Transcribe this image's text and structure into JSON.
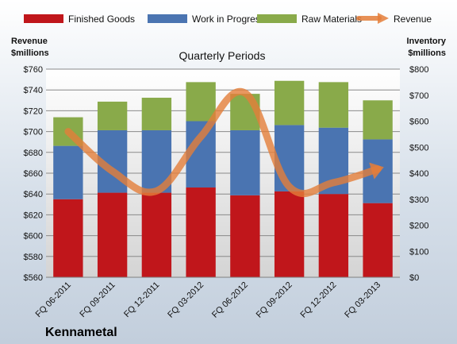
{
  "chart_data": {
    "type": "bar",
    "subtitle": "Quarterly Periods",
    "brand": "Kennametal",
    "categories": [
      "FQ 06-2011",
      "FQ 09-2011",
      "FQ 12-2011",
      "FQ 03-2012",
      "FQ 06-2012",
      "FQ 09-2012",
      "FQ 12-2012",
      "FQ 03-2013"
    ],
    "y_left": {
      "label_line1": "Revenue",
      "label_line2": "$millions",
      "range": [
        560,
        760
      ],
      "ticks": [
        "$560",
        "$580",
        "$600",
        "$620",
        "$640",
        "$660",
        "$680",
        "$700",
        "$720",
        "$740",
        "$760"
      ]
    },
    "y_right": {
      "label_line1": "Inventory",
      "label_line2": "$millions",
      "range": [
        0,
        800
      ],
      "ticks": [
        "$0",
        "$100",
        "$200",
        "$300",
        "$400",
        "$500",
        "$600",
        "$700",
        "$800"
      ]
    },
    "stacked_series": [
      {
        "name": "Finished Goods",
        "color": "#C0161B",
        "values": [
          300,
          325,
          325,
          345,
          315,
          330,
          320,
          285
        ]
      },
      {
        "name": "Work in Progress",
        "color": "#4A74B1",
        "values": [
          205,
          240,
          240,
          255,
          250,
          255,
          255,
          245
        ]
      },
      {
        "name": "Raw Materials",
        "color": "#89AA4A",
        "values": [
          110,
          110,
          125,
          150,
          140,
          170,
          175,
          150
        ]
      }
    ],
    "line_series": {
      "name": "Revenue",
      "color": "#E47E3A",
      "axis": "left",
      "values": [
        700,
        662,
        643,
        695,
        737,
        647,
        651,
        664
      ]
    },
    "grid": true,
    "legend_position": "top"
  }
}
